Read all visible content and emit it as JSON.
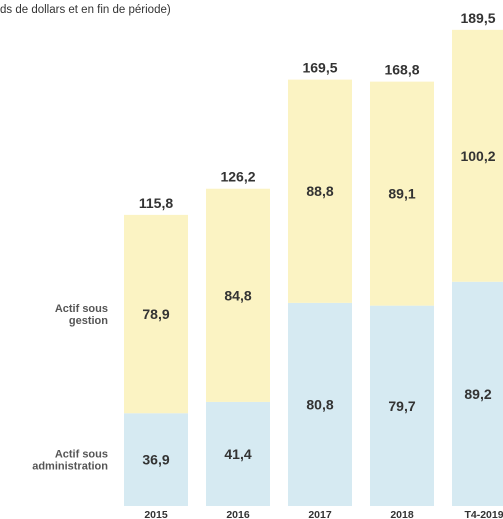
{
  "chart_data": {
    "type": "bar",
    "stacked": true,
    "subtitle": "ds de dollars et en fin de période)",
    "categories": [
      "2015",
      "2016",
      "2017",
      "2018",
      "T4-2019"
    ],
    "series": [
      {
        "name": "Actif sous administration",
        "name_lines": [
          "Actif sous",
          "administration"
        ],
        "values": [
          36.9,
          41.4,
          80.8,
          79.7,
          89.2
        ],
        "labels": [
          "36,9",
          "41,4",
          "80,8",
          "79,7",
          "89,2"
        ],
        "color": "#d6eaf2"
      },
      {
        "name": "Actif sous gestion",
        "name_lines": [
          "Actif sous",
          "gestion"
        ],
        "values": [
          78.9,
          84.8,
          88.8,
          89.1,
          100.2
        ],
        "labels": [
          "78,9",
          "84,8",
          "88,8",
          "89,1",
          "100,2"
        ],
        "color": "#fbf3c3"
      }
    ],
    "totals": [
      115.8,
      126.2,
      169.5,
      168.8,
      189.5
    ],
    "total_labels": [
      "115,8",
      "126,2",
      "169,5",
      "168,8",
      "189,5"
    ],
    "ylim": [
      0,
      189.5
    ],
    "grid": false,
    "legend": "left, inline row labels"
  }
}
